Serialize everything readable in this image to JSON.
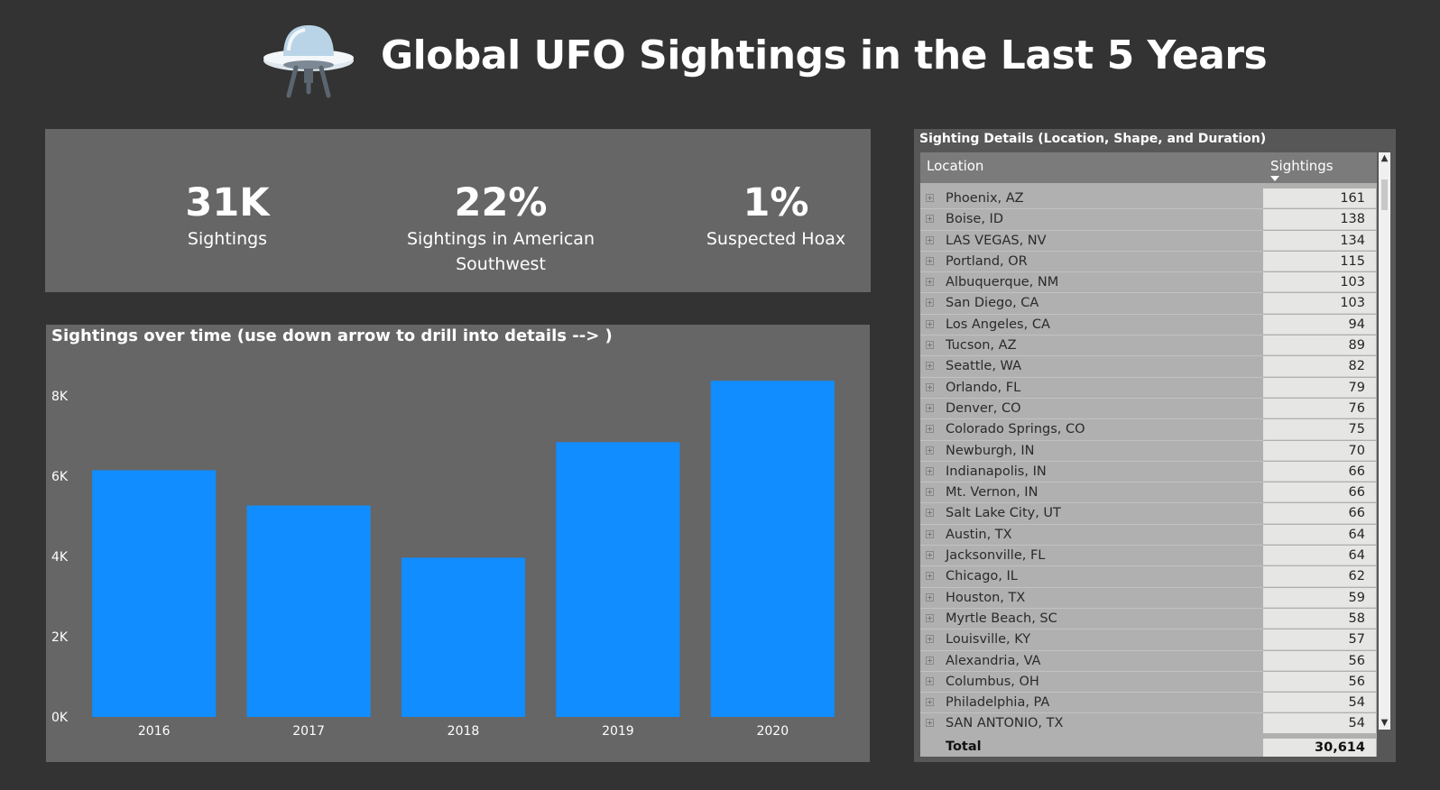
{
  "header": {
    "title": "Global UFO Sightings in the Last 5 Years",
    "logo_icon": "ufo-icon"
  },
  "kpis": [
    {
      "value": "31K",
      "label": "Sightings"
    },
    {
      "value": "22%",
      "label": "Sightings in  American Southwest"
    },
    {
      "value": "1%",
      "label": "Suspected Hoax"
    }
  ],
  "chart": {
    "title": "Sightings over time (use down arrow to drill into details --> )"
  },
  "chart_data": {
    "type": "bar",
    "categories": [
      "2016",
      "2017",
      "2018",
      "2019",
      "2020"
    ],
    "values": [
      6150,
      5270,
      3970,
      6850,
      8380
    ],
    "ylim": [
      0,
      8700
    ],
    "yticks": [
      0,
      2000,
      4000,
      6000,
      8000
    ],
    "ytick_labels": [
      "0K",
      "2K",
      "4K",
      "6K",
      "8K"
    ],
    "bar_color": "#118dff",
    "grid": false
  },
  "table": {
    "title": "Sighting Details (Location, Shape, and Duration)",
    "col_location": "Location",
    "col_sightings": "Sightings",
    "rows": [
      {
        "location": "Phoenix, AZ",
        "sightings": "161"
      },
      {
        "location": "Boise, ID",
        "sightings": "138"
      },
      {
        "location": "LAS VEGAS, NV",
        "sightings": "134"
      },
      {
        "location": "Portland, OR",
        "sightings": "115"
      },
      {
        "location": "Albuquerque, NM",
        "sightings": "103"
      },
      {
        "location": "San Diego, CA",
        "sightings": "103"
      },
      {
        "location": "Los Angeles, CA",
        "sightings": "94"
      },
      {
        "location": "Tucson, AZ",
        "sightings": "89"
      },
      {
        "location": "Seattle, WA",
        "sightings": "82"
      },
      {
        "location": "Orlando, FL",
        "sightings": "79"
      },
      {
        "location": "Denver, CO",
        "sightings": "76"
      },
      {
        "location": "Colorado Springs, CO",
        "sightings": "75"
      },
      {
        "location": "Newburgh, IN",
        "sightings": "70"
      },
      {
        "location": "Indianapolis, IN",
        "sightings": "66"
      },
      {
        "location": "Mt. Vernon, IN",
        "sightings": "66"
      },
      {
        "location": "Salt Lake City, UT",
        "sightings": "66"
      },
      {
        "location": "Austin, TX",
        "sightings": "64"
      },
      {
        "location": "Jacksonville, FL",
        "sightings": "64"
      },
      {
        "location": "Chicago, IL",
        "sightings": "62"
      },
      {
        "location": "Houston, TX",
        "sightings": "59"
      },
      {
        "location": "Myrtle Beach, SC",
        "sightings": "58"
      },
      {
        "location": "Louisville, KY",
        "sightings": "57"
      },
      {
        "location": "Alexandria, VA",
        "sightings": "56"
      },
      {
        "location": "Columbus, OH",
        "sightings": "56"
      },
      {
        "location": "Philadelphia, PA",
        "sightings": "54"
      },
      {
        "location": "SAN ANTONIO, TX",
        "sightings": "54"
      }
    ],
    "total_label": "Total",
    "total_value": "30,614"
  }
}
